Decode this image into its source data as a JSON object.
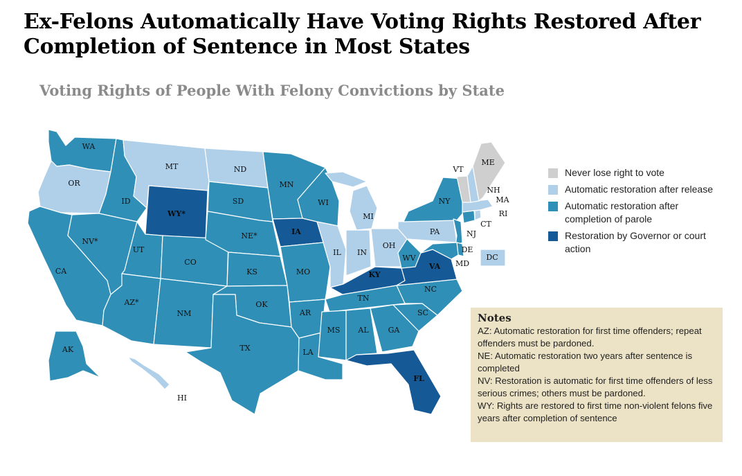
{
  "title": "Ex-Felons Automatically Have Voting Rights Restored After Completion of Sentence in Most States",
  "subtitle": "Voting Rights of People With Felony Convictions by State",
  "colors": {
    "never": "#cfcfcf",
    "release": "#b0cfe8",
    "parole": "#2f8fb7",
    "governor": "#155a96",
    "border": "#ffffff"
  },
  "legend": [
    {
      "category": "never",
      "label": "Never lose right to vote"
    },
    {
      "category": "release",
      "label": "Automatic restoration after release"
    },
    {
      "category": "parole",
      "label": "Automatic restoration after completion of parole"
    },
    {
      "category": "governor",
      "label": "Restoration by Governor or court action"
    }
  ],
  "states": [
    {
      "id": "WA",
      "label": "WA",
      "category": "parole"
    },
    {
      "id": "OR",
      "label": "OR",
      "category": "release"
    },
    {
      "id": "CA",
      "label": "CA",
      "category": "parole"
    },
    {
      "id": "ID",
      "label": "ID",
      "category": "parole"
    },
    {
      "id": "NV",
      "label": "NV*",
      "category": "parole"
    },
    {
      "id": "MT",
      "label": "MT",
      "category": "release"
    },
    {
      "id": "WY",
      "label": "WY*",
      "category": "governor"
    },
    {
      "id": "UT",
      "label": "UT",
      "category": "parole"
    },
    {
      "id": "AZ",
      "label": "AZ*",
      "category": "parole"
    },
    {
      "id": "CO",
      "label": "CO",
      "category": "parole"
    },
    {
      "id": "NM",
      "label": "NM",
      "category": "parole"
    },
    {
      "id": "ND",
      "label": "ND",
      "category": "release"
    },
    {
      "id": "SD",
      "label": "SD",
      "category": "parole"
    },
    {
      "id": "NE",
      "label": "NE*",
      "category": "parole"
    },
    {
      "id": "KS",
      "label": "KS",
      "category": "parole"
    },
    {
      "id": "OK",
      "label": "OK",
      "category": "parole"
    },
    {
      "id": "TX",
      "label": "TX",
      "category": "parole"
    },
    {
      "id": "MN",
      "label": "MN",
      "category": "parole"
    },
    {
      "id": "IA",
      "label": "IA",
      "category": "governor"
    },
    {
      "id": "MO",
      "label": "MO",
      "category": "parole"
    },
    {
      "id": "AR",
      "label": "AR",
      "category": "parole"
    },
    {
      "id": "LA",
      "label": "LA",
      "category": "parole"
    },
    {
      "id": "WI",
      "label": "WI",
      "category": "parole"
    },
    {
      "id": "IL",
      "label": "IL",
      "category": "release"
    },
    {
      "id": "MI",
      "label": "MI",
      "category": "release"
    },
    {
      "id": "IN",
      "label": "IN",
      "category": "release"
    },
    {
      "id": "OH",
      "label": "OH",
      "category": "release"
    },
    {
      "id": "KY",
      "label": "KY",
      "category": "governor"
    },
    {
      "id": "TN",
      "label": "TN",
      "category": "parole"
    },
    {
      "id": "MS",
      "label": "MS",
      "category": "parole"
    },
    {
      "id": "AL",
      "label": "AL",
      "category": "parole"
    },
    {
      "id": "GA",
      "label": "GA",
      "category": "parole"
    },
    {
      "id": "FL",
      "label": "FL",
      "category": "governor"
    },
    {
      "id": "SC",
      "label": "SC",
      "category": "parole"
    },
    {
      "id": "NC",
      "label": "NC",
      "category": "parole"
    },
    {
      "id": "VA",
      "label": "VA",
      "category": "governor"
    },
    {
      "id": "WV",
      "label": "WV",
      "category": "parole"
    },
    {
      "id": "PA",
      "label": "PA",
      "category": "release"
    },
    {
      "id": "NY",
      "label": "NY",
      "category": "parole"
    },
    {
      "id": "NJ",
      "label": "NJ",
      "category": "parole"
    },
    {
      "id": "DE",
      "label": "DE",
      "category": "parole"
    },
    {
      "id": "MD",
      "label": "MD",
      "category": "parole"
    },
    {
      "id": "DC",
      "label": "DC",
      "category": "release"
    },
    {
      "id": "CT",
      "label": "CT",
      "category": "parole"
    },
    {
      "id": "RI",
      "label": "RI",
      "category": "release"
    },
    {
      "id": "MA",
      "label": "MA",
      "category": "release"
    },
    {
      "id": "VT",
      "label": "VT",
      "category": "never"
    },
    {
      "id": "NH",
      "label": "NH",
      "category": "release"
    },
    {
      "id": "ME",
      "label": "ME",
      "category": "never"
    },
    {
      "id": "AK",
      "label": "AK",
      "category": "parole"
    },
    {
      "id": "HI",
      "label": "HI",
      "category": "release"
    }
  ],
  "notes": {
    "heading": "Notes",
    "items": [
      "AZ: Automatic restoration for first time offenders; repeat offenders must be pardoned.",
      "NE: Automatic restoration two years after sentence is completed",
      "NV: Restoration is automatic for first time offenders of less serious crimes; others must be pardoned.",
      "WY: Rights are restored to first time non-violent felons five years after completion of sentence"
    ]
  }
}
